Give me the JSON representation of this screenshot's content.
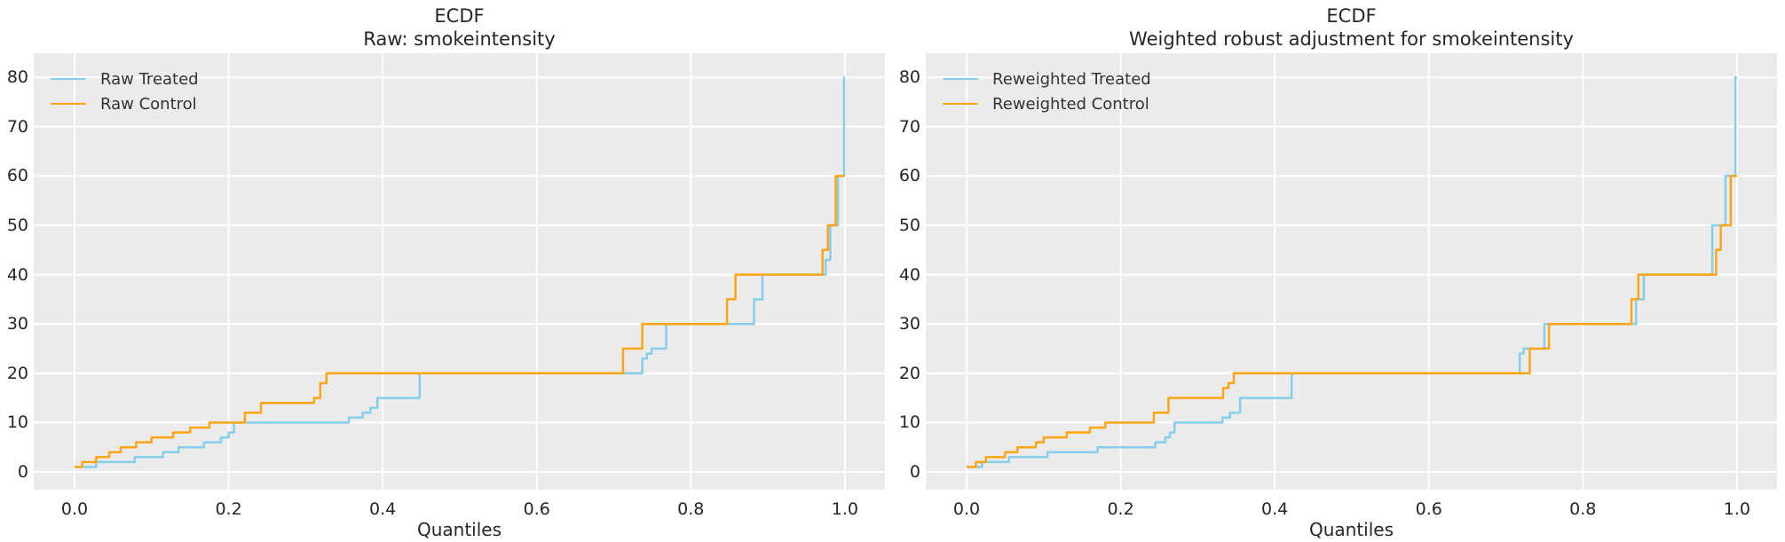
{
  "figure": {
    "background": "#ffffff"
  },
  "styles": {
    "plot_bg": "#ebebeb",
    "grid_color": "#ffffff",
    "text_color": "#262626",
    "treated_color": "#87CEEB",
    "control_color": "#FFA513"
  },
  "chart_data": [
    {
      "type": "line",
      "variant": "ecdf-step",
      "title_lines": [
        "ECDF",
        "Raw: smokeintensity"
      ],
      "xlabel": "Quantiles",
      "ylabel": "",
      "xlim": [
        -0.053,
        1.052
      ],
      "ylim": [
        -3.6,
        84.9
      ],
      "xticks": [
        0.0,
        0.2,
        0.4,
        0.6,
        0.8,
        1.0
      ],
      "xtick_labels": [
        "0.0",
        "0.2",
        "0.4",
        "0.6",
        "0.8",
        "1.0"
      ],
      "yticks": [
        0,
        10,
        20,
        30,
        40,
        50,
        60,
        70,
        80
      ],
      "ytick_labels": [
        "0",
        "10",
        "20",
        "30",
        "40",
        "50",
        "60",
        "70",
        "80"
      ],
      "grid": true,
      "legend_position": "upper left",
      "series": [
        {
          "name": "Raw Treated",
          "color": "#87CEEB",
          "steps": [
            [
              0,
              1
            ],
            [
              0.028,
              2
            ],
            [
              0.078,
              3
            ],
            [
              0.115,
              4
            ],
            [
              0.135,
              5
            ],
            [
              0.168,
              6
            ],
            [
              0.19,
              7
            ],
            [
              0.2,
              8
            ],
            [
              0.207,
              10
            ],
            [
              0.356,
              11
            ],
            [
              0.374,
              12
            ],
            [
              0.384,
              13
            ],
            [
              0.393,
              15
            ],
            [
              0.448,
              20
            ],
            [
              0.737,
              23
            ],
            [
              0.743,
              24
            ],
            [
              0.749,
              25
            ],
            [
              0.768,
              30
            ],
            [
              0.882,
              35
            ],
            [
              0.893,
              40
            ],
            [
              0.975,
              43
            ],
            [
              0.981,
              50
            ],
            [
              0.991,
              60
            ],
            [
              0.999,
              80
            ],
            [
              1.0,
              80
            ]
          ]
        },
        {
          "name": "Raw Control",
          "color": "#FFA513",
          "steps": [
            [
              0,
              1
            ],
            [
              0.01,
              2
            ],
            [
              0.028,
              3
            ],
            [
              0.045,
              4
            ],
            [
              0.06,
              5
            ],
            [
              0.08,
              6
            ],
            [
              0.1,
              7
            ],
            [
              0.128,
              8
            ],
            [
              0.15,
              9
            ],
            [
              0.175,
              10
            ],
            [
              0.221,
              12
            ],
            [
              0.242,
              14
            ],
            [
              0.311,
              15
            ],
            [
              0.319,
              18
            ],
            [
              0.327,
              20
            ],
            [
              0.712,
              25
            ],
            [
              0.737,
              30
            ],
            [
              0.847,
              35
            ],
            [
              0.858,
              40
            ],
            [
              0.971,
              45
            ],
            [
              0.978,
              50
            ],
            [
              0.988,
              60
            ],
            [
              1.0,
              60
            ]
          ]
        }
      ]
    },
    {
      "type": "line",
      "variant": "ecdf-step",
      "title_lines": [
        "ECDF",
        "Weighted robust adjustment for smokeintensity"
      ],
      "xlabel": "Quantiles",
      "ylabel": "",
      "xlim": [
        -0.053,
        1.052
      ],
      "ylim": [
        -3.6,
        84.9
      ],
      "xticks": [
        0.0,
        0.2,
        0.4,
        0.6,
        0.8,
        1.0
      ],
      "xtick_labels": [
        "0.0",
        "0.2",
        "0.4",
        "0.6",
        "0.8",
        "1.0"
      ],
      "yticks": [
        0,
        10,
        20,
        30,
        40,
        50,
        60,
        70,
        80
      ],
      "ytick_labels": [
        "0",
        "10",
        "20",
        "30",
        "40",
        "50",
        "60",
        "70",
        "80"
      ],
      "grid": true,
      "legend_position": "upper left",
      "series": [
        {
          "name": "Reweighted Treated",
          "color": "#87CEEB",
          "steps": [
            [
              0,
              1
            ],
            [
              0.02,
              2
            ],
            [
              0.055,
              3
            ],
            [
              0.105,
              4
            ],
            [
              0.17,
              5
            ],
            [
              0.245,
              6
            ],
            [
              0.258,
              7
            ],
            [
              0.264,
              8
            ],
            [
              0.27,
              10
            ],
            [
              0.332,
              11
            ],
            [
              0.342,
              12
            ],
            [
              0.355,
              15
            ],
            [
              0.422,
              20
            ],
            [
              0.718,
              24
            ],
            [
              0.723,
              25
            ],
            [
              0.75,
              30
            ],
            [
              0.869,
              35
            ],
            [
              0.879,
              40
            ],
            [
              0.968,
              50
            ],
            [
              0.985,
              60
            ],
            [
              0.998,
              80
            ],
            [
              1.0,
              80
            ]
          ]
        },
        {
          "name": "Reweighted Control",
          "color": "#FFA513",
          "steps": [
            [
              0,
              1
            ],
            [
              0.012,
              2
            ],
            [
              0.025,
              3
            ],
            [
              0.05,
              4
            ],
            [
              0.066,
              5
            ],
            [
              0.09,
              6
            ],
            [
              0.1,
              7
            ],
            [
              0.13,
              8
            ],
            [
              0.16,
              9
            ],
            [
              0.18,
              10
            ],
            [
              0.243,
              12
            ],
            [
              0.262,
              15
            ],
            [
              0.333,
              17
            ],
            [
              0.34,
              18
            ],
            [
              0.347,
              20
            ],
            [
              0.731,
              25
            ],
            [
              0.756,
              30
            ],
            [
              0.863,
              35
            ],
            [
              0.872,
              40
            ],
            [
              0.973,
              45
            ],
            [
              0.979,
              50
            ],
            [
              0.992,
              60
            ],
            [
              1.0,
              60
            ]
          ]
        }
      ]
    }
  ]
}
